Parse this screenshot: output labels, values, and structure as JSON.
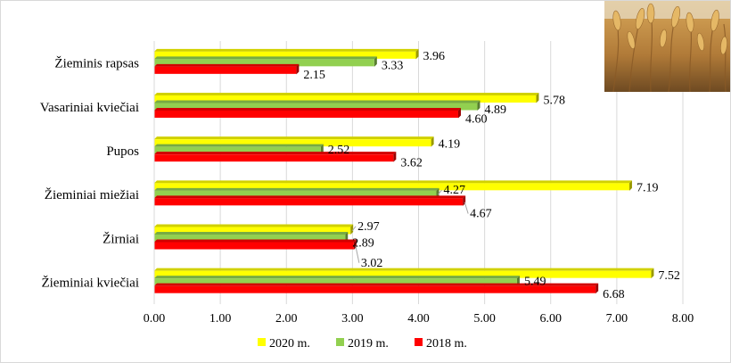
{
  "chart_data": {
    "type": "bar",
    "orientation": "horizontal",
    "title": "",
    "xlabel": "",
    "ylabel": "",
    "categories": [
      "Žieminis rapsas",
      "Vasariniai kviečiai",
      "Pupos",
      "Žieminiai miežiai",
      "Žirniai",
      "Žieminiai kviečiai"
    ],
    "series": [
      {
        "name": "2020 m.",
        "color": "#ffff00",
        "values": [
          3.96,
          5.78,
          4.19,
          7.19,
          2.97,
          7.52
        ],
        "labels": [
          "3.96",
          "5.78",
          "4.19",
          "7.19",
          "2.97",
          "7.52"
        ]
      },
      {
        "name": "2019 m.",
        "color": "#92d050",
        "values": [
          3.33,
          4.89,
          2.52,
          4.27,
          2.89,
          5.49
        ],
        "labels": [
          "3.33",
          "4.89",
          "2.52",
          "4.27",
          "2.89",
          "5.49"
        ]
      },
      {
        "name": "2018 m.",
        "color": "#ff0000",
        "values": [
          2.15,
          4.6,
          3.62,
          4.67,
          3.02,
          6.68
        ],
        "labels": [
          "2.15",
          "4.60",
          "3.62",
          "4.67",
          "3.02",
          "6.68"
        ]
      }
    ],
    "xlim": [
      0,
      8
    ],
    "xticks": [
      "0.00",
      "1.00",
      "2.00",
      "3.00",
      "4.00",
      "5.00",
      "6.00",
      "7.00",
      "8.00"
    ],
    "grid": true,
    "legend_position": "bottom",
    "image": "wheat-photo"
  }
}
